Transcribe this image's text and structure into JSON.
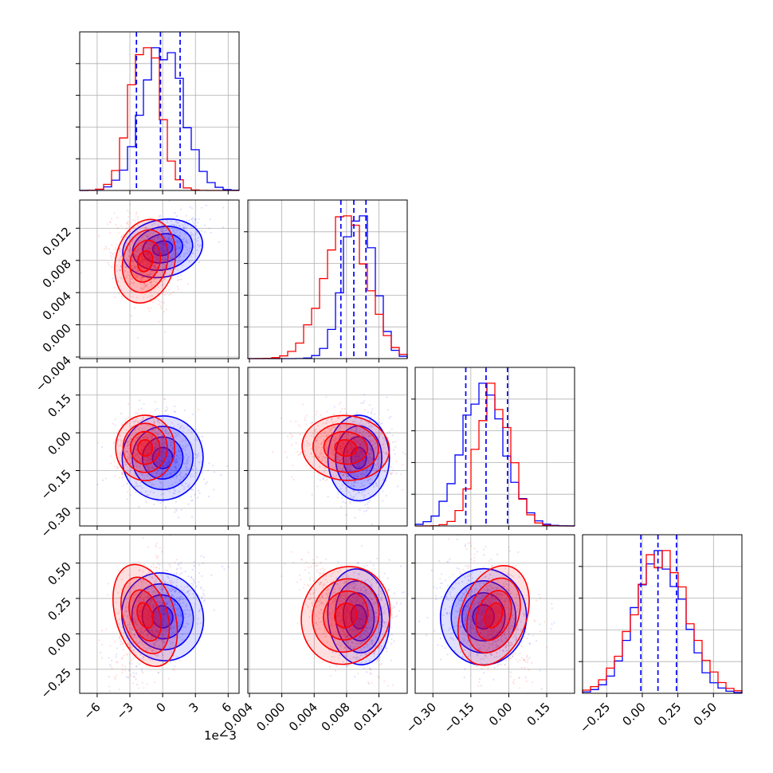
{
  "chart_data": {
    "type": "corner",
    "parameters": [
      {
        "ticks": [
          -6,
          -3,
          0,
          3,
          6
        ],
        "tick_labels": [
          "−6",
          "−3",
          "0",
          "3",
          "6"
        ],
        "range": [
          -7.6,
          7.0
        ],
        "offset_label": "1e−3"
      },
      {
        "ticks": [
          -0.004,
          0.0,
          0.004,
          0.008,
          0.012
        ],
        "tick_labels": [
          "−0.004",
          "0.000",
          "0.004",
          "0.008",
          "0.012"
        ],
        "range": [
          -0.0042,
          0.0155
        ]
      },
      {
        "ticks": [
          -0.3,
          -0.15,
          0.0,
          0.15
        ],
        "tick_labels": [
          "−0.30",
          "−0.15",
          "0.00",
          "0.15"
        ],
        "range": [
          -0.37,
          0.26
        ]
      },
      {
        "ticks": [
          -0.25,
          0.0,
          0.25,
          0.5
        ],
        "tick_labels": [
          "−0.25",
          "0.00",
          "0.25",
          "0.50"
        ],
        "range": [
          -0.42,
          0.7
        ]
      }
    ],
    "series": [
      {
        "color": "#0000ff",
        "mean": [
          0.0,
          0.0095,
          -0.1,
          0.12
        ],
        "std": [
          1.85,
          0.0019,
          0.085,
          0.17
        ]
      },
      {
        "color": "#ff0000",
        "mean": [
          -1.6,
          0.0079,
          -0.06,
          0.13
        ],
        "std": [
          1.35,
          0.0027,
          0.065,
          0.19
        ]
      }
    ],
    "quantile_lines": [
      [
        -2.4,
        -0.2,
        1.6
      ],
      [
        0.0073,
        0.0089,
        0.0104
      ],
      [
        -0.17,
        -0.09,
        -0.005
      ],
      [
        -0.01,
        0.11,
        0.24
      ]
    ],
    "quantile_color": "#0000ff",
    "grid": true
  }
}
